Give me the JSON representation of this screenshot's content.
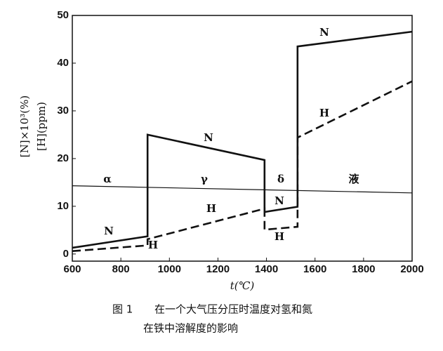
{
  "chart_data": {
    "type": "line",
    "x_label": "t(℃)",
    "y_label": [
      "[N]×10³(%)",
      "[H](ppm)"
    ],
    "caption": [
      "图 1",
      "在一个大气压分压时温度对氢和氮",
      "在铁中溶解度的影响"
    ],
    "xlim": [
      600,
      2000
    ],
    "xticks": [
      600,
      800,
      1000,
      1200,
      1400,
      1600,
      1800,
      2000
    ],
    "ylim": [
      -1.5,
      50
    ],
    "yticks": [
      0,
      10,
      20,
      30,
      40,
      50
    ],
    "grid": false,
    "series": [
      {
        "name": "N",
        "color": "#111111",
        "dash": false,
        "x": [
          600,
          910,
          910,
          1392,
          1392,
          1528,
          1528,
          2000
        ],
        "values": [
          1.3,
          3.7,
          25.0,
          19.7,
          8.8,
          9.9,
          43.5,
          46.6
        ]
      },
      {
        "name": "H",
        "color": "#111111",
        "dash": true,
        "x": [
          600,
          910,
          910,
          1392,
          1392,
          1528,
          1528,
          2000
        ],
        "values": [
          0.6,
          1.8,
          3.1,
          9.5,
          5.1,
          5.7,
          24.4,
          36.2
        ]
      }
    ],
    "boundary": {
      "x": [
        600,
        2000
      ],
      "values": [
        14.3,
        12.8
      ]
    },
    "phase_labels": [
      "α",
      "γ",
      "δ",
      "液"
    ]
  }
}
